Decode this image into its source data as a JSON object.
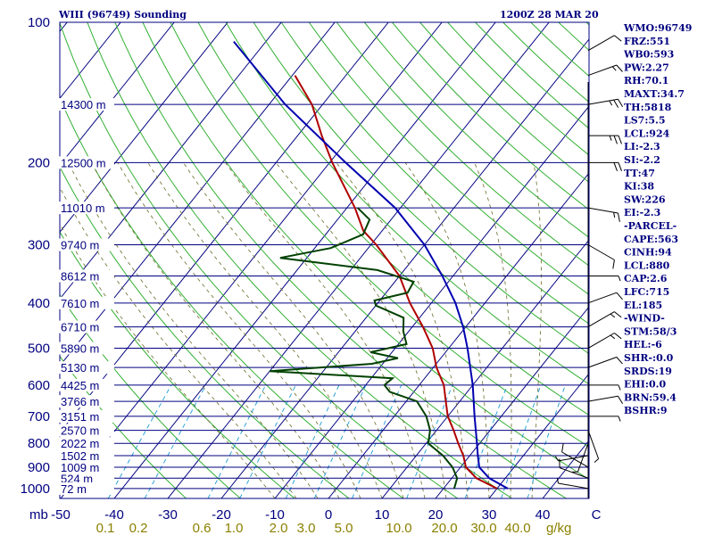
{
  "header": {
    "title": "WIII (96749) Sounding",
    "datetime": "1200Z 28 MAR 20"
  },
  "stats": [
    "WMO:96749",
    "FRZ:551",
    "WB0:593",
    "PW:2.27",
    "RH:70.1",
    "MAXT:34.7",
    "TH:5818",
    "LS7:5.5",
    "LCL:924",
    "LI:-2.3",
    "SI:-2.2",
    "TT:47",
    "KI:38",
    "SW:226",
    "EI:-2.3",
    "-PARCEL-",
    "CAPE:563",
    "CINH:94",
    "LCL:880",
    "CAP:2.6",
    "LFC:715",
    "EL:185",
    "-WIND-",
    "STM:58/3",
    "HEL:-6",
    "SHR-:0.0",
    "SRDS:19",
    "EHI:0.0",
    "BRN:59.4",
    "BSHR:9"
  ],
  "chart_data": {
    "type": "line",
    "title": "WIII (96749) Sounding",
    "x_units_label": "mb",
    "mixing_ratio_units": "g/kg",
    "pressure_ticks": [
      100,
      200,
      300,
      400,
      500,
      600,
      700,
      800,
      900,
      1000
    ],
    "temperature_ticks": [
      "-50",
      "-40",
      "-30",
      "-20",
      "-10",
      "0",
      "10",
      "20",
      "30",
      "40",
      "C"
    ],
    "mixing_ratio_ticks": [
      "0.1",
      "0.2",
      "0.6",
      "1.0",
      "2.0",
      "3.0",
      "5.0",
      "10.0",
      "20.0",
      "30.0",
      "40.0"
    ],
    "height_levels": [
      {
        "label": "14300 m",
        "p": 150
      },
      {
        "label": "12500 m",
        "p": 200
      },
      {
        "label": "11010 m",
        "p": 250
      },
      {
        "label": "9740 m",
        "p": 300
      },
      {
        "label": "8612 m",
        "p": 350
      },
      {
        "label": "7610 m",
        "p": 400
      },
      {
        "label": "6710 m",
        "p": 450
      },
      {
        "label": "5890 m",
        "p": 500
      },
      {
        "label": "5130 m",
        "p": 550
      },
      {
        "label": "4425 m",
        "p": 600
      },
      {
        "label": "3766 m",
        "p": 650
      },
      {
        "label": "3151 m",
        "p": 700
      },
      {
        "label": "2570 m",
        "p": 750
      },
      {
        "label": "2022 m",
        "p": 800
      },
      {
        "label": "1502 m",
        "p": 850
      },
      {
        "label": "1009 m",
        "p": 900
      },
      {
        "label": "524 m",
        "p": 950
      },
      {
        "label": "72 m",
        "p": 1000
      }
    ],
    "series": [
      {
        "name": "",
        "color": "#b00000",
        "role": "temperature",
        "points": [
          {
            "p": 1000,
            "t": 30.0
          },
          {
            "p": 950,
            "t": 24.6
          },
          {
            "p": 900,
            "t": 21.0
          },
          {
            "p": 850,
            "t": 18.8
          },
          {
            "p": 800,
            "t": 16.0
          },
          {
            "p": 750,
            "t": 13.2
          },
          {
            "p": 700,
            "t": 10.0
          },
          {
            "p": 650,
            "t": 7.4
          },
          {
            "p": 600,
            "t": 4.6
          },
          {
            "p": 550,
            "t": 0.6
          },
          {
            "p": 500,
            "t": -3.0
          },
          {
            "p": 450,
            "t": -8.0
          },
          {
            "p": 400,
            "t": -14.0
          },
          {
            "p": 350,
            "t": -20.0
          },
          {
            "p": 300,
            "t": -29.0
          },
          {
            "p": 280,
            "t": -33.5
          },
          {
            "p": 250,
            "t": -38.5
          },
          {
            "p": 200,
            "t": -49.5
          },
          {
            "p": 175,
            "t": -55.5
          },
          {
            "p": 150,
            "t": -62.0
          },
          {
            "p": 130,
            "t": -69.5
          }
        ]
      },
      {
        "name": "",
        "color": "#004000",
        "role": "dewpoint",
        "points": [
          {
            "p": 1000,
            "t": 22.0
          },
          {
            "p": 950,
            "t": 21.0
          },
          {
            "p": 900,
            "t": 18.5
          },
          {
            "p": 850,
            "t": 15.0
          },
          {
            "p": 800,
            "t": 10.4
          },
          {
            "p": 750,
            "t": 8.8
          },
          {
            "p": 700,
            "t": 6.0
          },
          {
            "p": 650,
            "t": 2.0
          },
          {
            "p": 620,
            "t": -4.5
          },
          {
            "p": 600,
            "t": -6.5
          },
          {
            "p": 580,
            "t": -6.0
          },
          {
            "p": 560,
            "t": -30.0
          },
          {
            "p": 540,
            "t": -12.0
          },
          {
            "p": 525,
            "t": -8.0
          },
          {
            "p": 510,
            "t": -14.0
          },
          {
            "p": 490,
            "t": -8.5
          },
          {
            "p": 460,
            "t": -11.0
          },
          {
            "p": 430,
            "t": -13.0
          },
          {
            "p": 405,
            "t": -20.0
          },
          {
            "p": 395,
            "t": -21.0
          },
          {
            "p": 380,
            "t": -16.0
          },
          {
            "p": 360,
            "t": -16.5
          },
          {
            "p": 340,
            "t": -25.0
          },
          {
            "p": 320,
            "t": -45.0
          },
          {
            "p": 305,
            "t": -37.0
          },
          {
            "p": 285,
            "t": -33.0
          },
          {
            "p": 265,
            "t": -34.0
          },
          {
            "p": 250,
            "t": -38.0
          }
        ]
      },
      {
        "name": "",
        "color": "#0000b0",
        "role": "parcel",
        "points": [
          {
            "p": 1000,
            "t": 32.0
          },
          {
            "p": 950,
            "t": 27.0
          },
          {
            "p": 900,
            "t": 23.5
          },
          {
            "p": 850,
            "t": 21.5
          },
          {
            "p": 800,
            "t": 19.5
          },
          {
            "p": 700,
            "t": 15.0
          },
          {
            "p": 600,
            "t": 10.0
          },
          {
            "p": 500,
            "t": 3.5
          },
          {
            "p": 450,
            "t": -0.5
          },
          {
            "p": 400,
            "t": -5.5
          },
          {
            "p": 350,
            "t": -12.0
          },
          {
            "p": 300,
            "t": -20.0
          },
          {
            "p": 250,
            "t": -31.0
          },
          {
            "p": 200,
            "t": -47.0
          },
          {
            "p": 150,
            "t": -67.0
          },
          {
            "p": 110,
            "t": -86.0
          }
        ]
      }
    ],
    "wind_barbs": [
      {
        "p": 1000,
        "dir": 280,
        "spd": 5
      },
      {
        "p": 950,
        "dir": 290,
        "spd": 10
      },
      {
        "p": 900,
        "dir": 300,
        "spd": 10
      },
      {
        "p": 850,
        "dir": 260,
        "spd": 5
      },
      {
        "p": 800,
        "dir": 200,
        "spd": 5
      },
      {
        "p": 750,
        "dir": 160,
        "spd": 5
      },
      {
        "p": 700,
        "dir": 90,
        "spd": 5
      },
      {
        "p": 650,
        "dir": 80,
        "spd": 10
      },
      {
        "p": 600,
        "dir": 90,
        "spd": 5
      },
      {
        "p": 550,
        "dir": 70,
        "spd": 10
      },
      {
        "p": 500,
        "dir": 60,
        "spd": 15
      },
      {
        "p": 450,
        "dir": 60,
        "spd": 15
      },
      {
        "p": 400,
        "dir": 70,
        "spd": 10
      },
      {
        "p": 350,
        "dir": 90,
        "spd": 5
      },
      {
        "p": 300,
        "dir": 120,
        "spd": 10
      },
      {
        "p": 250,
        "dir": 100,
        "spd": 15
      },
      {
        "p": 200,
        "dir": 90,
        "spd": 20
      },
      {
        "p": 175,
        "dir": 90,
        "spd": 25
      },
      {
        "p": 150,
        "dir": 80,
        "spd": 25
      },
      {
        "p": 130,
        "dir": 70,
        "spd": 15
      },
      {
        "p": 115,
        "dir": 60,
        "spd": 10
      }
    ]
  }
}
